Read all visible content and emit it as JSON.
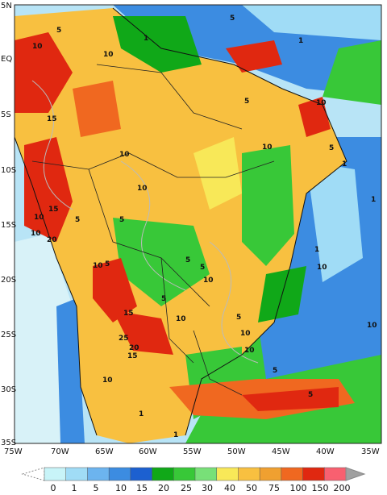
{
  "map": {
    "lat_ticks": [
      "5N",
      "EQ",
      "5S",
      "10S",
      "15S",
      "20S",
      "25S",
      "30S",
      "35S"
    ],
    "lon_ticks": [
      "75W",
      "70W",
      "65W",
      "60W",
      "55W",
      "50W",
      "45W",
      "40W",
      "35W"
    ],
    "contour_labels": [
      "5",
      "10",
      "1",
      "5",
      "10",
      "15",
      "10",
      "5",
      "10",
      "1",
      "5",
      "10",
      "15",
      "10",
      "20",
      "5",
      "10",
      "1",
      "5",
      "10",
      "10",
      "5",
      "15",
      "20",
      "25",
      "15",
      "10",
      "1",
      "5",
      "10",
      "5",
      "10",
      "5",
      "1",
      "10",
      "10",
      "5",
      "5",
      "10",
      "5",
      "1",
      "10",
      "1"
    ]
  },
  "legend": {
    "ticks": [
      "0",
      "1",
      "5",
      "10",
      "15",
      "20",
      "25",
      "30",
      "40",
      "50",
      "75",
      "100",
      "150",
      "200"
    ],
    "colors": [
      "#c8f4f8",
      "#a0dcf6",
      "#6cb4ef",
      "#3c8ce1",
      "#1c60d0",
      "#10a818",
      "#38c838",
      "#78e078",
      "#f8e858",
      "#f8c040",
      "#f0a030",
      "#f06820",
      "#e02810",
      "#f86070",
      "#a0a0a0"
    ]
  }
}
